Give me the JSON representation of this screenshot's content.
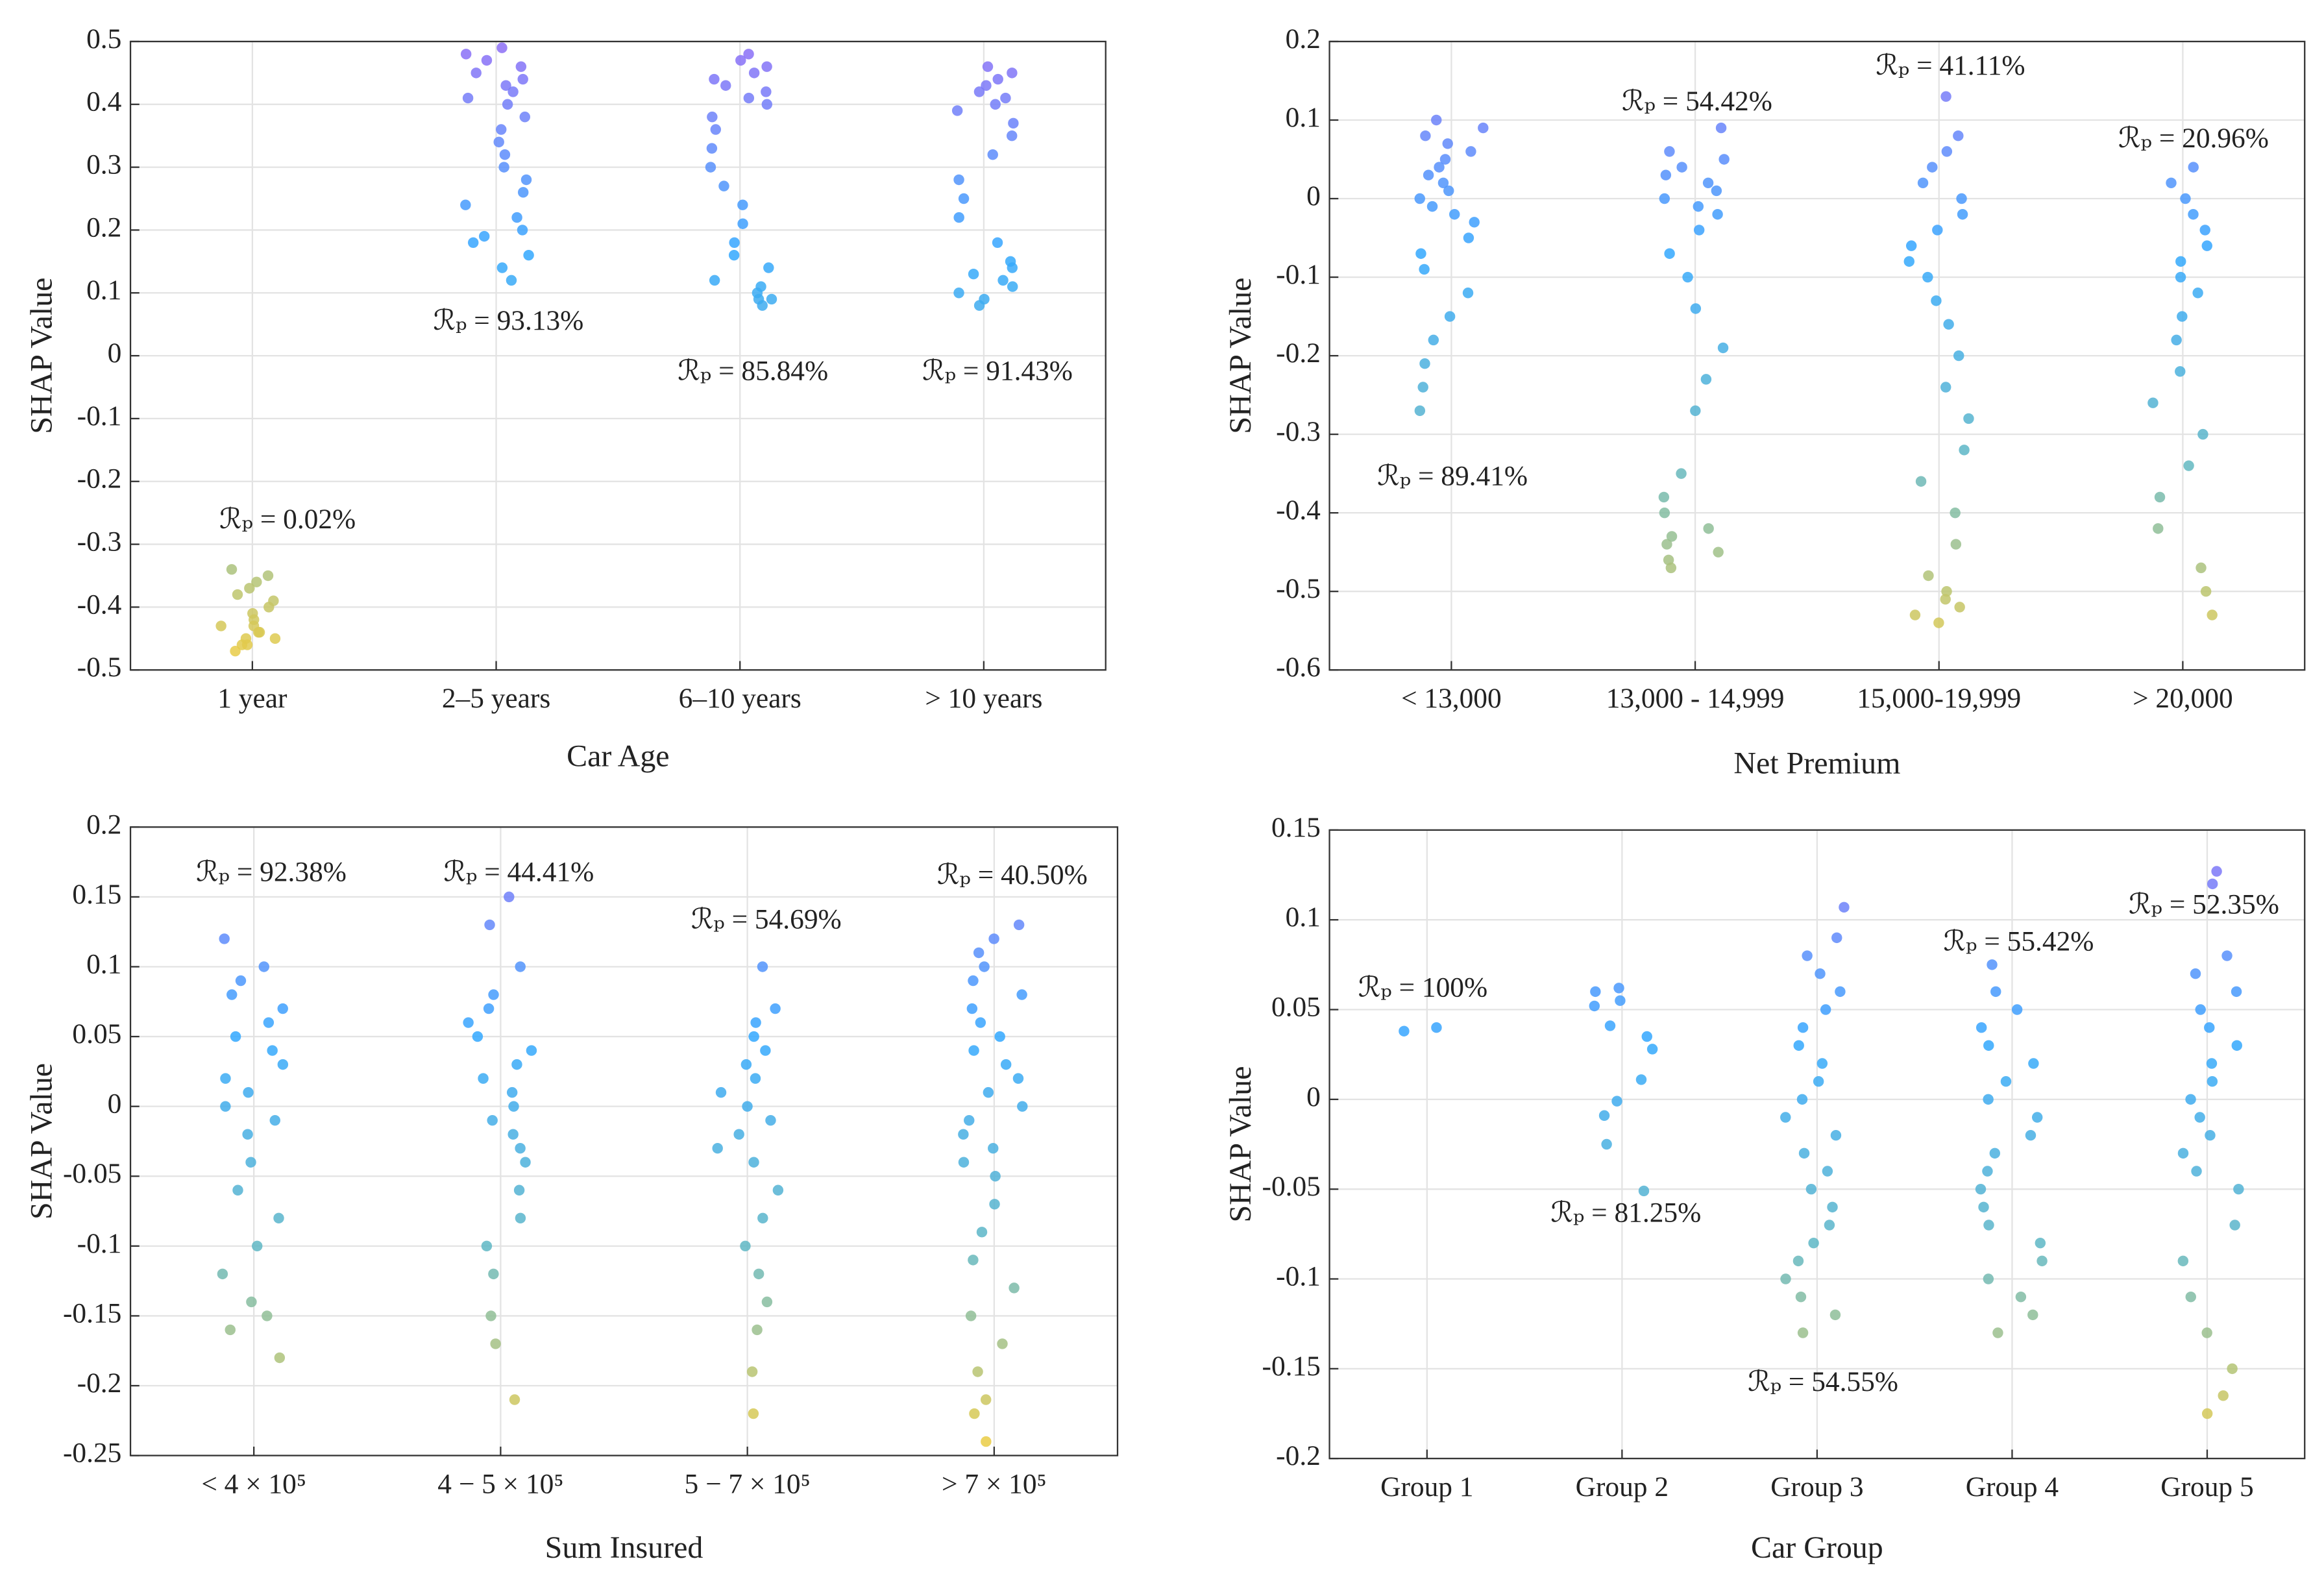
{
  "chart_data": [
    {
      "type": "strip",
      "x_label": "Car Age",
      "y_label": "SHAP Value",
      "categories": [
        "1 year",
        "2–5 years",
        "6–10 years",
        "> 10 years"
      ],
      "annotations": [
        "ℛₚ = 0.02%",
        "ℛₚ = 93.13%",
        "ℛₚ = 85.84%",
        "ℛₚ = 91.43%"
      ],
      "ylim": [
        -0.5,
        0.5
      ],
      "yticks": [
        -0.5,
        -0.4,
        -0.3,
        -0.2,
        -0.1,
        0,
        0.1,
        0.2,
        0.3,
        0.4,
        0.5
      ],
      "grid": true,
      "colormap": [
        "#f4cd3c",
        "#5fb7c4",
        "#33a8ff",
        "#8f6cf6"
      ],
      "points": [
        [
          -0.34,
          -0.35,
          -0.36,
          -0.37,
          -0.38,
          -0.39,
          -0.4,
          -0.41,
          -0.42,
          -0.43,
          -0.43,
          -0.44,
          -0.44,
          -0.45,
          -0.45,
          -0.46,
          -0.46,
          -0.47
        ],
        [
          0.49,
          0.48,
          0.47,
          0.46,
          0.45,
          0.44,
          0.43,
          0.42,
          0.41,
          0.4,
          0.38,
          0.36,
          0.34,
          0.32,
          0.3,
          0.28,
          0.26,
          0.24,
          0.22,
          0.2,
          0.19,
          0.18,
          0.16,
          0.14,
          0.12
        ],
        [
          0.48,
          0.47,
          0.46,
          0.45,
          0.44,
          0.43,
          0.42,
          0.41,
          0.4,
          0.38,
          0.36,
          0.33,
          0.3,
          0.27,
          0.24,
          0.21,
          0.18,
          0.16,
          0.14,
          0.12,
          0.11,
          0.1,
          0.09,
          0.09,
          0.08
        ],
        [
          0.46,
          0.45,
          0.44,
          0.43,
          0.42,
          0.41,
          0.4,
          0.39,
          0.37,
          0.35,
          0.32,
          0.28,
          0.25,
          0.22,
          0.18,
          0.15,
          0.14,
          0.13,
          0.12,
          0.11,
          0.1,
          0.09,
          0.08
        ]
      ]
    },
    {
      "type": "strip",
      "x_label": "Net Premium",
      "y_label": "SHAP Value",
      "categories": [
        "< 13,000",
        "13,000 - 14,999",
        "15,000-19,999",
        "> 20,000"
      ],
      "annotations": [
        "ℛₚ = 89.41%",
        "ℛₚ = 54.42%",
        "ℛₚ = 41.11%",
        "ℛₚ = 20.96%"
      ],
      "ylim": [
        -0.6,
        0.2
      ],
      "yticks": [
        -0.6,
        -0.5,
        -0.4,
        -0.3,
        -0.2,
        -0.1,
        0,
        0.1,
        0.2
      ],
      "grid": true,
      "colormap": [
        "#f4cd3c",
        "#5fb7c4",
        "#33a8ff",
        "#8f6cf6"
      ],
      "points": [
        [
          0.1,
          0.09,
          0.08,
          0.07,
          0.06,
          0.05,
          0.04,
          0.03,
          0.02,
          0.01,
          0.0,
          -0.01,
          -0.02,
          -0.03,
          -0.05,
          -0.07,
          -0.09,
          -0.12,
          -0.15,
          -0.18,
          -0.21,
          -0.24,
          -0.27
        ],
        [
          0.09,
          0.06,
          0.05,
          0.04,
          0.03,
          0.02,
          0.01,
          0.0,
          -0.01,
          -0.02,
          -0.04,
          -0.07,
          -0.1,
          -0.14,
          -0.19,
          -0.23,
          -0.27,
          -0.35,
          -0.38,
          -0.4,
          -0.42,
          -0.43,
          -0.44,
          -0.45,
          -0.46,
          -0.47
        ],
        [
          0.13,
          0.08,
          0.06,
          0.04,
          0.02,
          0.0,
          -0.02,
          -0.04,
          -0.06,
          -0.08,
          -0.1,
          -0.13,
          -0.16,
          -0.2,
          -0.24,
          -0.28,
          -0.32,
          -0.36,
          -0.4,
          -0.44,
          -0.48,
          -0.5,
          -0.51,
          -0.52,
          -0.53,
          -0.54
        ],
        [
          0.04,
          0.02,
          0.0,
          -0.02,
          -0.04,
          -0.06,
          -0.08,
          -0.1,
          -0.12,
          -0.15,
          -0.18,
          -0.22,
          -0.26,
          -0.3,
          -0.34,
          -0.38,
          -0.42,
          -0.47,
          -0.5,
          -0.53
        ]
      ]
    },
    {
      "type": "strip",
      "x_label": "Sum Insured",
      "y_label": "SHAP Value",
      "categories": [
        "< 4 × 10⁵",
        "4 − 5 × 10⁵",
        "5 − 7 × 10⁵",
        "> 7 × 10⁵"
      ],
      "annotations": [
        "ℛₚ = 92.38%",
        "ℛₚ = 44.41%",
        "ℛₚ = 54.69%",
        "ℛₚ = 40.50%"
      ],
      "ylim": [
        -0.25,
        0.2
      ],
      "yticks": [
        -0.25,
        -0.2,
        -0.15,
        -0.1,
        -0.05,
        0,
        0.05,
        0.1,
        0.15,
        0.2
      ],
      "grid": true,
      "colormap": [
        "#f4cd3c",
        "#5fb7c4",
        "#33a8ff",
        "#8f6cf6"
      ],
      "points": [
        [
          0.12,
          0.1,
          0.09,
          0.08,
          0.07,
          0.06,
          0.05,
          0.04,
          0.03,
          0.02,
          0.01,
          0.0,
          -0.01,
          -0.02,
          -0.04,
          -0.06,
          -0.08,
          -0.1,
          -0.12,
          -0.14,
          -0.15,
          -0.16,
          -0.18
        ],
        [
          0.15,
          0.13,
          0.1,
          0.08,
          0.07,
          0.06,
          0.05,
          0.04,
          0.03,
          0.02,
          0.01,
          0.0,
          -0.01,
          -0.02,
          -0.03,
          -0.04,
          -0.06,
          -0.08,
          -0.1,
          -0.12,
          -0.15,
          -0.17,
          -0.21
        ],
        [
          0.1,
          0.07,
          0.06,
          0.05,
          0.04,
          0.03,
          0.02,
          0.01,
          0.0,
          -0.01,
          -0.02,
          -0.03,
          -0.04,
          -0.06,
          -0.08,
          -0.1,
          -0.12,
          -0.14,
          -0.16,
          -0.19,
          -0.22
        ],
        [
          0.13,
          0.12,
          0.11,
          0.1,
          0.09,
          0.08,
          0.07,
          0.06,
          0.05,
          0.04,
          0.03,
          0.02,
          0.01,
          0.0,
          -0.01,
          -0.02,
          -0.03,
          -0.04,
          -0.05,
          -0.07,
          -0.09,
          -0.11,
          -0.13,
          -0.15,
          -0.17,
          -0.19,
          -0.21,
          -0.22,
          -0.24
        ]
      ]
    },
    {
      "type": "strip",
      "x_label": "Car Group",
      "y_label": "SHAP Value",
      "categories": [
        "Group 1",
        "Group 2",
        "Group 3",
        "Group 4",
        "Group 5"
      ],
      "annotations": [
        "ℛₚ = 100%",
        "ℛₚ = 81.25%",
        "ℛₚ = 54.55%",
        "ℛₚ = 55.42%",
        "ℛₚ = 52.35%"
      ],
      "ylim": [
        -0.2,
        0.15
      ],
      "yticks": [
        -0.2,
        -0.15,
        -0.1,
        -0.05,
        0,
        0.05,
        0.1,
        0.15
      ],
      "grid": true,
      "colormap": [
        "#f4cd3c",
        "#5fb7c4",
        "#33a8ff",
        "#8f6cf6"
      ],
      "points": [
        [
          0.04,
          0.038
        ],
        [
          0.062,
          0.06,
          0.055,
          0.052,
          0.041,
          0.035,
          0.028,
          0.011,
          -0.001,
          -0.009,
          -0.025,
          -0.051
        ],
        [
          0.107,
          0.09,
          0.08,
          0.07,
          0.06,
          0.05,
          0.04,
          0.03,
          0.02,
          0.01,
          0.0,
          -0.01,
          -0.02,
          -0.03,
          -0.04,
          -0.05,
          -0.06,
          -0.07,
          -0.08,
          -0.09,
          -0.1,
          -0.11,
          -0.12,
          -0.13
        ],
        [
          0.075,
          0.06,
          0.05,
          0.04,
          0.03,
          0.02,
          0.01,
          0.0,
          -0.01,
          -0.02,
          -0.03,
          -0.04,
          -0.05,
          -0.06,
          -0.07,
          -0.08,
          -0.09,
          -0.1,
          -0.11,
          -0.12,
          -0.13
        ],
        [
          0.127,
          0.12,
          0.08,
          0.07,
          0.06,
          0.05,
          0.04,
          0.03,
          0.02,
          0.01,
          0.0,
          -0.01,
          -0.02,
          -0.03,
          -0.04,
          -0.05,
          -0.07,
          -0.09,
          -0.11,
          -0.13,
          -0.15,
          -0.165,
          -0.175
        ]
      ]
    }
  ]
}
